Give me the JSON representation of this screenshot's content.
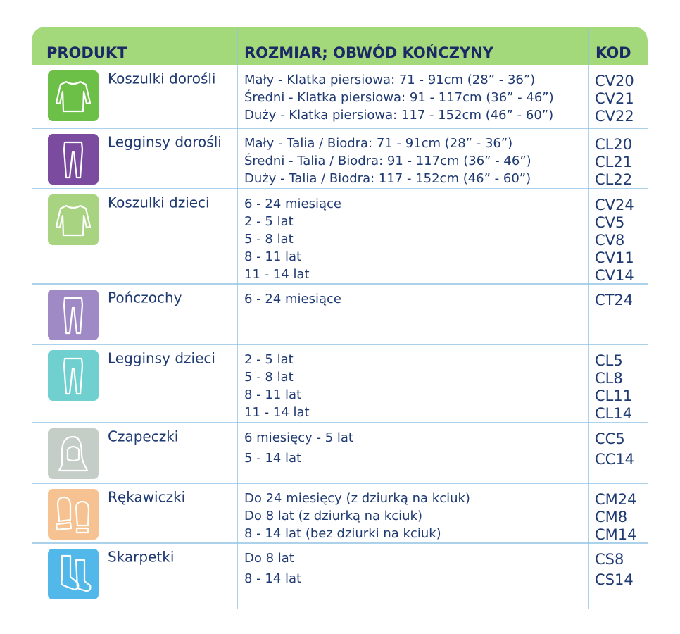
{
  "header": {
    "columns": [
      "PRODUKT",
      "ROZMIAR; OBWÓD KOŃCZYNY",
      "KOD"
    ]
  },
  "rows": [
    {
      "product": "Koszulki dorośli",
      "sizes": [
        "Mały - Klatka piersiowa: 71 - 91cm (28” - 36”)",
        "Średni - Klatka piersiowa: 91 - 117cm (36” - 46”)",
        "Duży - Klatka piersiowa: 117 - 152cm (46” - 60”)"
      ],
      "codes": [
        "CV20",
        "CV21",
        "CV22"
      ]
    },
    {
      "product": "Legginsy dorośli",
      "sizes": [
        "Mały - Talia / Biodra: 71 - 91cm (28” - 36”)",
        "Średni - Talia / Biodra: 91 - 117cm (36” - 46”)",
        "Duży - Talia / Biodra: 117 - 152cm (46” - 60”)"
      ],
      "codes": [
        "CL20",
        "CL21",
        "CL22"
      ]
    },
    {
      "product": "Koszulki dzieci",
      "sizes": [
        "6 - 24 miesiące",
        "2 - 5 lat",
        "5 - 8 lat",
        "8 - 11 lat",
        "11 - 14 lat"
      ],
      "codes": [
        "CV24",
        "CV5",
        "CV8",
        "CV11",
        "CV14"
      ]
    },
    {
      "product": "Pończochy",
      "sizes": [
        "6 - 24 miesiące"
      ],
      "codes": [
        "CT24"
      ]
    },
    {
      "product": "Legginsy dzieci",
      "sizes": [
        "2 - 5 lat",
        "5 - 8 lat",
        "8 - 11 lat",
        "11 - 14 lat"
      ],
      "codes": [
        "CL5",
        "CL8",
        "CL11",
        "CL14"
      ]
    },
    {
      "product": "Czapeczki",
      "sizes": [
        "6 miesięcy - 5 lat",
        "5 - 14 lat"
      ],
      "codes": [
        "CC5",
        "CC14"
      ]
    },
    {
      "product": "Rękawiczki",
      "sizes": [
        "Do 24 miesięcy (z dziurką na kciuk)",
        "Do 8 lat (z dziurką na kciuk)",
        "8 - 14 lat (bez dziurki na kciuk)"
      ],
      "codes": [
        "CM24",
        "CM8",
        "CM14"
      ]
    },
    {
      "product": "Skarpetki",
      "sizes": [
        "Do 8 lat",
        "8 - 14 lat"
      ],
      "codes": [
        "CS8",
        "CS14"
      ]
    }
  ]
}
